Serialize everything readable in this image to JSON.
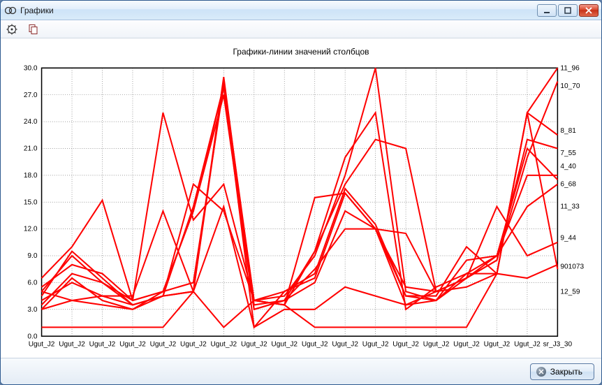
{
  "window": {
    "title": "Графики"
  },
  "footer": {
    "close_label": "Закрыть"
  },
  "chart": {
    "type": "line",
    "title": "Графики-линии значений столбцов",
    "background_color": "#ffffff",
    "plot_border_color": "#000000",
    "grid_color": "#808080",
    "grid_dash": "1 2",
    "line_color": "#ff0000",
    "line_width": 2,
    "ylim": [
      0,
      30
    ],
    "ytick_step": 3,
    "yticks": [
      0.0,
      3.0,
      6.0,
      9.0,
      12.0,
      15.0,
      18.0,
      21.0,
      24.0,
      27.0,
      30.0
    ],
    "x_categories": [
      "Ugut_J2",
      "Ugut_J2",
      "Ugut_J2",
      "Ugut_J2",
      "Ugut_J2",
      "Ugut_J2",
      "Ugut_J2",
      "Ugut_J2",
      "Ugut_J2",
      "Ugut_J2",
      "Ugut_J2",
      "Ugut_J2",
      "Ugut_J2",
      "Ugut_J2",
      "Ugut_J2",
      "Ugut_J2",
      "Ugut_J2",
      "sr_J3_30"
    ],
    "series": [
      {
        "name": "11_96",
        "label_y": 30.0,
        "values": [
          4.5,
          9.5,
          6.5,
          3.5,
          4.5,
          5.0,
          28.5,
          4.0,
          3.5,
          9.5,
          20.0,
          25.0,
          3.0,
          5.5,
          7.0,
          7.0,
          25.0,
          30.0
        ]
      },
      {
        "name": "10_70",
        "label_y": 28.0,
        "values": [
          5.5,
          8.0,
          7.0,
          4.0,
          5.0,
          14.0,
          27.0,
          3.0,
          4.0,
          9.5,
          17.0,
          22.0,
          21.0,
          5.0,
          6.5,
          8.5,
          20.0,
          28.5
        ]
      },
      {
        "name": "8_81",
        "label_y": 23.0,
        "values": [
          6.5,
          10.0,
          15.2,
          4.0,
          25.0,
          13.0,
          17.0,
          4.0,
          3.5,
          15.5,
          16.0,
          12.0,
          4.5,
          4.5,
          10.0,
          7.0,
          25.0,
          22.5
        ]
      },
      {
        "name": "7_55",
        "label_y": 20.5,
        "values": [
          3.5,
          7.0,
          6.0,
          4.0,
          5.0,
          14.0,
          28.0,
          4.0,
          5.0,
          6.5,
          16.0,
          12.0,
          11.5,
          5.0,
          6.5,
          8.5,
          22.0,
          21.0
        ]
      },
      {
        "name": "4_40",
        "label_y": 19.0,
        "values": [
          4.0,
          6.0,
          4.5,
          3.5,
          4.5,
          14.5,
          28.0,
          1.0,
          5.0,
          7.0,
          16.5,
          12.5,
          4.5,
          4.0,
          7.0,
          9.0,
          18.0,
          18.0
        ]
      },
      {
        "name": "6_68",
        "label_y": 17.0,
        "values": [
          5.0,
          9.0,
          6.0,
          3.5,
          4.5,
          17.0,
          14.0,
          4.0,
          4.5,
          9.0,
          18.0,
          30.0,
          5.0,
          4.0,
          8.5,
          9.0,
          14.5,
          17.0
        ]
      },
      {
        "name": "11_33",
        "label_y": 14.5,
        "values": [
          3.0,
          4.0,
          3.5,
          3.0,
          5.0,
          6.0,
          28.0,
          3.5,
          4.0,
          6.0,
          14.0,
          12.0,
          3.5,
          4.0,
          6.5,
          9.0,
          21.0,
          17.5
        ]
      },
      {
        "name": "9_44",
        "label_y": 11.0,
        "values": [
          3.0,
          6.5,
          4.0,
          3.0,
          4.5,
          5.0,
          29.0,
          3.0,
          4.0,
          7.5,
          12.0,
          12.0,
          5.5,
          5.0,
          6.5,
          14.5,
          9.0,
          10.5
        ]
      },
      {
        "name": "901073",
        "label_y": 7.8,
        "values": [
          5.0,
          4.0,
          4.5,
          4.5,
          14.0,
          5.0,
          14.5,
          1.0,
          3.0,
          3.0,
          5.5,
          4.5,
          3.5,
          5.0,
          5.5,
          7.0,
          6.5,
          8.0
        ]
      },
      {
        "name": "12_59",
        "label_y": 5.0,
        "values": [
          1.0,
          1.0,
          1.0,
          1.0,
          1.0,
          5.0,
          1.0,
          4.0,
          3.5,
          1.0,
          1.0,
          1.0,
          1.0,
          1.0,
          1.0,
          7.0,
          25.0,
          7.5
        ]
      }
    ],
    "label_fontsize": 10
  }
}
